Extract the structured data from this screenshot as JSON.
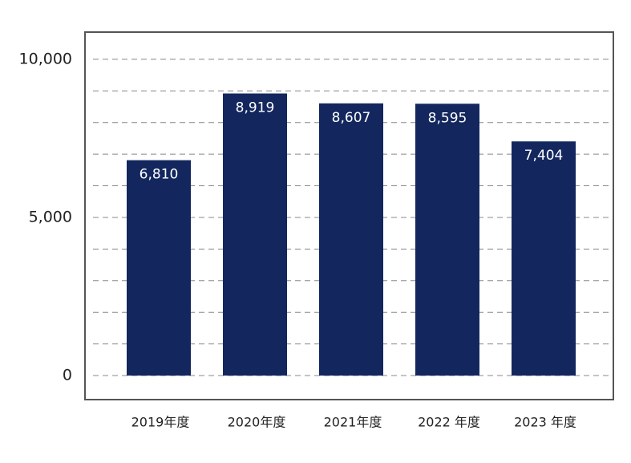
{
  "chart_data": {
    "type": "bar",
    "categories": [
      "2019年度",
      "2020年度",
      "2021年度",
      "2022 年度",
      "2023 年度"
    ],
    "values": [
      6810,
      8919,
      8607,
      8595,
      7404
    ],
    "value_labels": [
      "6,810",
      "8,919",
      "8,607",
      "8,595",
      "7,404"
    ],
    "color": "#13275e",
    "ylim": [
      -760,
      10860
    ],
    "yticks": [
      0,
      {
        "value": 5000,
        "label": "5,000"
      },
      {
        "value": 10000,
        "label": "10,000"
      }
    ],
    "minor_yticks": [
      1000,
      2000,
      3000,
      4000,
      6000,
      7000,
      8000,
      9000
    ],
    "grid": true
  }
}
